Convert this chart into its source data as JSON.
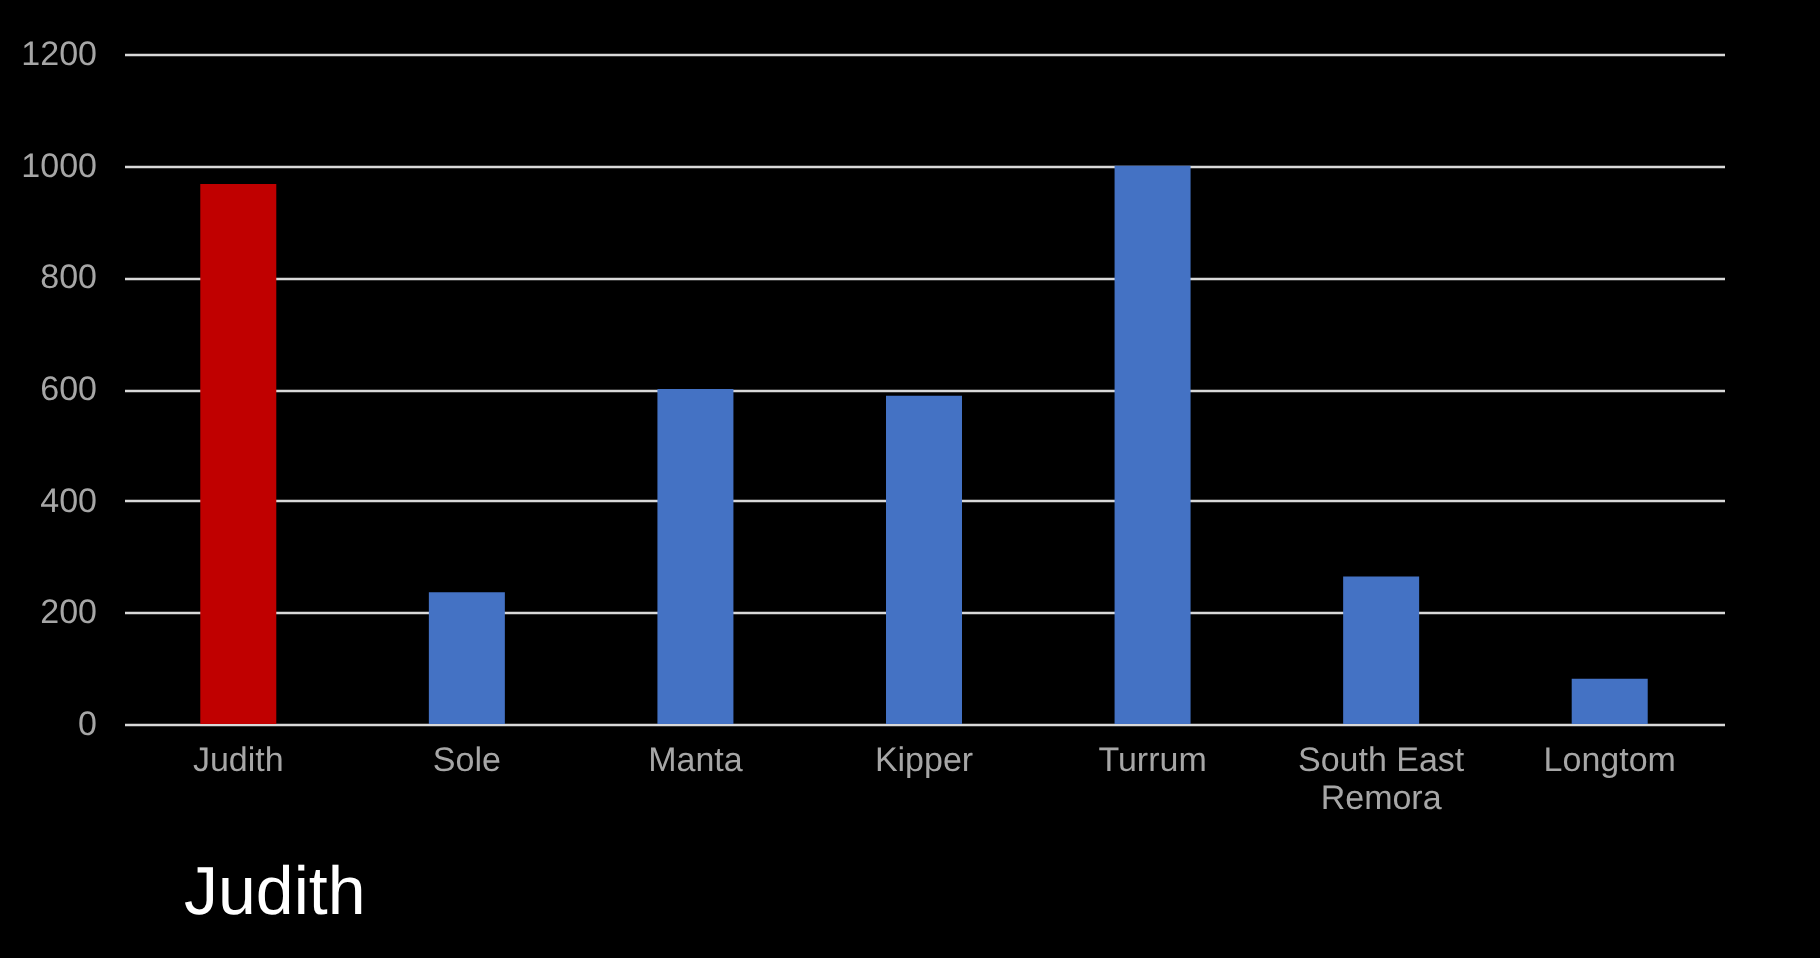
{
  "chart_data": {
    "type": "bar",
    "categories": [
      "Judith",
      "Sole",
      "Manta",
      "Kipper",
      "Turrum",
      "South East Remora",
      "Longtom"
    ],
    "values": [
      967,
      236,
      600,
      588,
      1000,
      264,
      81
    ],
    "colors": [
      "#c00000",
      "#4472c4",
      "#4472c4",
      "#4472c4",
      "#4472c4",
      "#4472c4",
      "#4472c4"
    ],
    "ylim": [
      0,
      1200
    ],
    "yticks": [
      0,
      200,
      400,
      600,
      800,
      1000,
      1200
    ],
    "grid": "y",
    "annotations": [
      "Judith"
    ]
  }
}
